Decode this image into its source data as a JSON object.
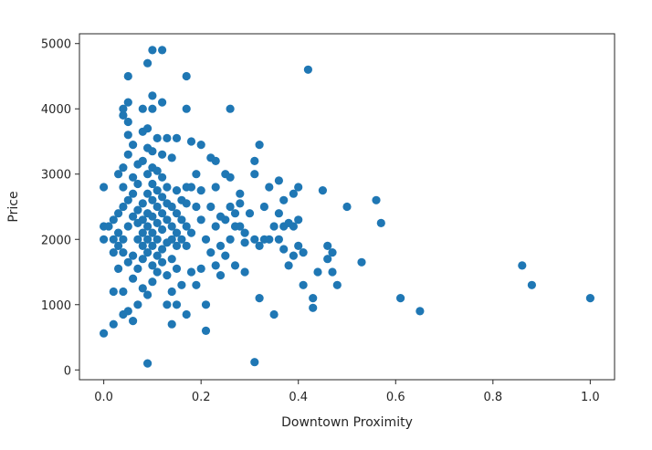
{
  "chart_data": {
    "type": "scatter",
    "title": "",
    "xlabel": "Downtown Proximity",
    "ylabel": "Price",
    "xlim": [
      -0.05,
      1.05
    ],
    "ylim": [
      -150,
      5150
    ],
    "xticks": [
      0.0,
      0.2,
      0.4,
      0.6,
      0.8,
      1.0
    ],
    "xtick_labels": [
      "0.0",
      "0.2",
      "0.4",
      "0.6",
      "0.8",
      "1.0"
    ],
    "yticks": [
      0,
      1000,
      2000,
      3000,
      4000,
      5000
    ],
    "ytick_labels": [
      "0",
      "1000",
      "2000",
      "3000",
      "4000",
      "5000"
    ],
    "grid": false,
    "color": "#1f77b4",
    "points": [
      [
        0.0,
        2800
      ],
      [
        0.0,
        2200
      ],
      [
        0.0,
        2000
      ],
      [
        0.0,
        560
      ],
      [
        0.01,
        2200
      ],
      [
        0.02,
        2000
      ],
      [
        0.02,
        1800
      ],
      [
        0.02,
        2300
      ],
      [
        0.03,
        1550
      ],
      [
        0.02,
        700
      ],
      [
        0.02,
        1200
      ],
      [
        0.03,
        3000
      ],
      [
        0.03,
        2400
      ],
      [
        0.03,
        2100
      ],
      [
        0.03,
        1900
      ],
      [
        0.04,
        2800
      ],
      [
        0.04,
        2500
      ],
      [
        0.04,
        2000
      ],
      [
        0.04,
        1800
      ],
      [
        0.04,
        1200
      ],
      [
        0.04,
        3100
      ],
      [
        0.04,
        3900
      ],
      [
        0.04,
        4000
      ],
      [
        0.05,
        3800
      ],
      [
        0.04,
        850
      ],
      [
        0.05,
        900
      ],
      [
        0.05,
        1650
      ],
      [
        0.05,
        2200
      ],
      [
        0.05,
        2600
      ],
      [
        0.05,
        3300
      ],
      [
        0.05,
        3600
      ],
      [
        0.05,
        4100
      ],
      [
        0.05,
        4500
      ],
      [
        0.06,
        1750
      ],
      [
        0.06,
        2350
      ],
      [
        0.06,
        2700
      ],
      [
        0.06,
        2950
      ],
      [
        0.06,
        3450
      ],
      [
        0.06,
        750
      ],
      [
        0.06,
        1400
      ],
      [
        0.07,
        2000
      ],
      [
        0.07,
        2250
      ],
      [
        0.07,
        2450
      ],
      [
        0.07,
        2850
      ],
      [
        0.07,
        3150
      ],
      [
        0.07,
        1550
      ],
      [
        0.07,
        1000
      ],
      [
        0.08,
        1700
      ],
      [
        0.08,
        1900
      ],
      [
        0.08,
        2100
      ],
      [
        0.08,
        2300
      ],
      [
        0.08,
        2550
      ],
      [
        0.08,
        3200
      ],
      [
        0.08,
        3650
      ],
      [
        0.08,
        4000
      ],
      [
        0.08,
        1250
      ],
      [
        0.09,
        1800
      ],
      [
        0.09,
        2000
      ],
      [
        0.09,
        2200
      ],
      [
        0.09,
        2400
      ],
      [
        0.09,
        2700
      ],
      [
        0.09,
        3000
      ],
      [
        0.09,
        3400
      ],
      [
        0.09,
        3700
      ],
      [
        0.09,
        4700
      ],
      [
        0.09,
        1150
      ],
      [
        0.09,
        100
      ],
      [
        0.1,
        4900
      ],
      [
        0.1,
        4200
      ],
      [
        0.1,
        1600
      ],
      [
        0.1,
        1900
      ],
      [
        0.1,
        2100
      ],
      [
        0.1,
        2350
      ],
      [
        0.1,
        2600
      ],
      [
        0.1,
        2850
      ],
      [
        0.1,
        3100
      ],
      [
        0.1,
        3350
      ],
      [
        0.1,
        4000
      ],
      [
        0.1,
        1350
      ],
      [
        0.11,
        1750
      ],
      [
        0.11,
        2000
      ],
      [
        0.11,
        2250
      ],
      [
        0.11,
        2500
      ],
      [
        0.11,
        2750
      ],
      [
        0.11,
        3050
      ],
      [
        0.11,
        3550
      ],
      [
        0.11,
        1500
      ],
      [
        0.12,
        4900
      ],
      [
        0.12,
        4100
      ],
      [
        0.12,
        1850
      ],
      [
        0.12,
        2150
      ],
      [
        0.12,
        2400
      ],
      [
        0.12,
        2650
      ],
      [
        0.12,
        2950
      ],
      [
        0.12,
        3300
      ],
      [
        0.12,
        1650
      ],
      [
        0.13,
        1450
      ],
      [
        0.13,
        1950
      ],
      [
        0.13,
        2300
      ],
      [
        0.13,
        2550
      ],
      [
        0.13,
        2800
      ],
      [
        0.13,
        3550
      ],
      [
        0.13,
        1000
      ],
      [
        0.14,
        1200
      ],
      [
        0.14,
        1700
      ],
      [
        0.14,
        2000
      ],
      [
        0.14,
        2200
      ],
      [
        0.14,
        2500
      ],
      [
        0.14,
        3250
      ],
      [
        0.14,
        700
      ],
      [
        0.15,
        1550
      ],
      [
        0.15,
        1900
      ],
      [
        0.15,
        2100
      ],
      [
        0.15,
        2400
      ],
      [
        0.15,
        2750
      ],
      [
        0.15,
        3550
      ],
      [
        0.15,
        1000
      ],
      [
        0.16,
        2000
      ],
      [
        0.16,
        2300
      ],
      [
        0.16,
        2600
      ],
      [
        0.16,
        1300
      ],
      [
        0.17,
        4500
      ],
      [
        0.17,
        4000
      ],
      [
        0.17,
        2800
      ],
      [
        0.17,
        2550
      ],
      [
        0.17,
        2200
      ],
      [
        0.17,
        1900
      ],
      [
        0.17,
        850
      ],
      [
        0.18,
        3500
      ],
      [
        0.18,
        2800
      ],
      [
        0.18,
        2100
      ],
      [
        0.18,
        1500
      ],
      [
        0.19,
        3000
      ],
      [
        0.19,
        2500
      ],
      [
        0.19,
        1300
      ],
      [
        0.2,
        3450
      ],
      [
        0.2,
        2750
      ],
      [
        0.2,
        2300
      ],
      [
        0.2,
        1550
      ],
      [
        0.21,
        2000
      ],
      [
        0.21,
        1000
      ],
      [
        0.21,
        600
      ],
      [
        0.22,
        3250
      ],
      [
        0.22,
        2500
      ],
      [
        0.22,
        1800
      ],
      [
        0.23,
        3200
      ],
      [
        0.23,
        2800
      ],
      [
        0.23,
        2200
      ],
      [
        0.23,
        1600
      ],
      [
        0.24,
        2350
      ],
      [
        0.24,
        1900
      ],
      [
        0.24,
        1450
      ],
      [
        0.25,
        3000
      ],
      [
        0.25,
        2300
      ],
      [
        0.25,
        1750
      ],
      [
        0.26,
        4000
      ],
      [
        0.26,
        2950
      ],
      [
        0.26,
        2500
      ],
      [
        0.26,
        2000
      ],
      [
        0.27,
        2400
      ],
      [
        0.27,
        2200
      ],
      [
        0.27,
        1600
      ],
      [
        0.28,
        2700
      ],
      [
        0.28,
        2550
      ],
      [
        0.28,
        2200
      ],
      [
        0.29,
        2100
      ],
      [
        0.29,
        1950
      ],
      [
        0.29,
        1500
      ],
      [
        0.3,
        2400
      ],
      [
        0.31,
        3200
      ],
      [
        0.31,
        3000
      ],
      [
        0.31,
        2000
      ],
      [
        0.31,
        120
      ],
      [
        0.32,
        3450
      ],
      [
        0.32,
        1900
      ],
      [
        0.32,
        1100
      ],
      [
        0.33,
        2500
      ],
      [
        0.33,
        2000
      ],
      [
        0.34,
        2800
      ],
      [
        0.34,
        2000
      ],
      [
        0.35,
        2200
      ],
      [
        0.35,
        850
      ],
      [
        0.36,
        2900
      ],
      [
        0.36,
        2400
      ],
      [
        0.36,
        2000
      ],
      [
        0.37,
        2600
      ],
      [
        0.37,
        2200
      ],
      [
        0.37,
        1850
      ],
      [
        0.38,
        2250
      ],
      [
        0.38,
        1600
      ],
      [
        0.39,
        2700
      ],
      [
        0.39,
        2200
      ],
      [
        0.39,
        1750
      ],
      [
        0.4,
        2800
      ],
      [
        0.4,
        2300
      ],
      [
        0.4,
        1900
      ],
      [
        0.41,
        1800
      ],
      [
        0.41,
        1300
      ],
      [
        0.42,
        4600
      ],
      [
        0.43,
        1100
      ],
      [
        0.43,
        950
      ],
      [
        0.44,
        1500
      ],
      [
        0.45,
        2750
      ],
      [
        0.46,
        1900
      ],
      [
        0.46,
        1700
      ],
      [
        0.47,
        1800
      ],
      [
        0.47,
        1500
      ],
      [
        0.48,
        1300
      ],
      [
        0.5,
        2500
      ],
      [
        0.53,
        1650
      ],
      [
        0.56,
        2600
      ],
      [
        0.57,
        2250
      ],
      [
        0.61,
        1100
      ],
      [
        0.65,
        900
      ],
      [
        0.86,
        1600
      ],
      [
        0.88,
        1300
      ],
      [
        1.0,
        1100
      ]
    ]
  }
}
